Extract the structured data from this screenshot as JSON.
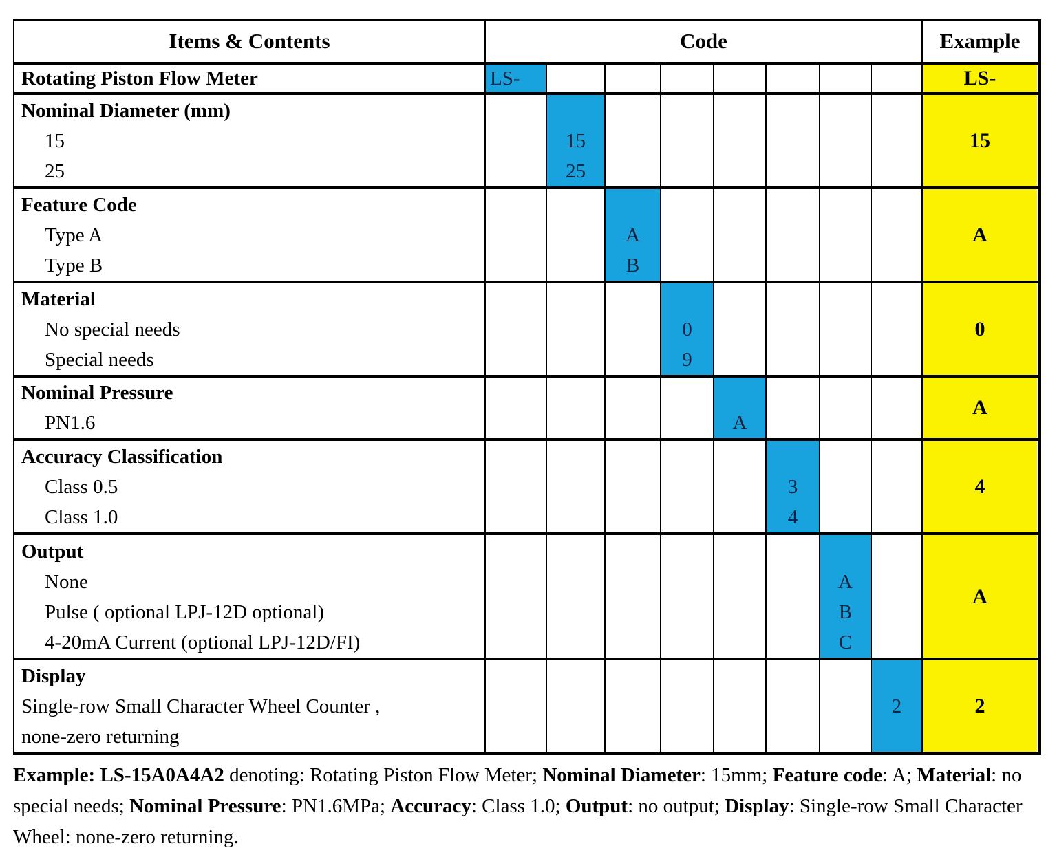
{
  "colors": {
    "code_fill": "#19A3DE",
    "example_fill": "#FAF200"
  },
  "table": {
    "header": {
      "items": "Items & Contents",
      "code": "Code",
      "example": "Example"
    },
    "rows": [
      {
        "item_lines": [
          {
            "text": "Rotating Piston Flow Meter"
          }
        ],
        "code_column": 1,
        "code_lines": [
          "LS-"
        ],
        "example": "LS-"
      },
      {
        "item_lines": [
          {
            "text": "Nominal Diameter (mm)"
          },
          {
            "text": "15"
          },
          {
            "text": "25"
          }
        ],
        "code_column": 2,
        "code_lines": [
          "",
          "15",
          "25"
        ],
        "example": "15"
      },
      {
        "item_lines": [
          {
            "text": "Feature Code"
          },
          {
            "text": "Type A"
          },
          {
            "text": "Type B"
          }
        ],
        "code_column": 3,
        "code_lines": [
          "",
          "A",
          "B"
        ],
        "example": "A"
      },
      {
        "item_lines": [
          {
            "text": "Material"
          },
          {
            "text": "No special needs"
          },
          {
            "text": "Special needs"
          }
        ],
        "code_column": 4,
        "code_lines": [
          "",
          "0",
          "9"
        ],
        "example": "0"
      },
      {
        "item_lines": [
          {
            "text": "Nominal Pressure"
          },
          {
            "text": "PN1.6"
          }
        ],
        "code_column": 5,
        "code_lines": [
          "",
          "A"
        ],
        "example": "A"
      },
      {
        "item_lines": [
          {
            "text": "Accuracy Classification"
          },
          {
            "text": "Class 0.5"
          },
          {
            "text": "Class 1.0"
          }
        ],
        "code_column": 6,
        "code_lines": [
          "",
          "3",
          "4"
        ],
        "example": "4"
      },
      {
        "item_lines": [
          {
            "text": "Output"
          },
          {
            "text": "None"
          },
          {
            "text": "Pulse ( optional LPJ-12D optional)"
          },
          {
            "text": "4-20mA Current (optional LPJ-12D/FI)"
          }
        ],
        "code_column": 7,
        "code_lines": [
          "",
          "A",
          "B",
          "C"
        ],
        "example": "A"
      },
      {
        "item_lines": [
          {
            "text": "Display"
          },
          {
            "text": "Single-row Small Character Wheel Counter ,"
          },
          {
            "text": "none-zero returning"
          }
        ],
        "code_column": 8,
        "code_lines": [
          "",
          "2",
          ""
        ],
        "example": "2"
      }
    ]
  },
  "footer": {
    "segments": [
      {
        "text": "Example: LS-15A0A4A2",
        "bold": true
      },
      {
        "text": " denoting: Rotating Piston Flow Meter; ",
        "bold": false
      },
      {
        "text": "Nominal Diameter",
        "bold": true
      },
      {
        "text": ": 15mm; ",
        "bold": false
      },
      {
        "text": "Feature code",
        "bold": true
      },
      {
        "text": ": A; ",
        "bold": false
      },
      {
        "text": "Material",
        "bold": true
      },
      {
        "text": ": no special needs; ",
        "bold": false
      },
      {
        "text": "Nominal Pressure",
        "bold": true
      },
      {
        "text": ": PN1.6MPa; ",
        "bold": false
      },
      {
        "text": "Accuracy",
        "bold": true
      },
      {
        "text": ": Class 1.0; ",
        "bold": false
      },
      {
        "text": "Output",
        "bold": true
      },
      {
        "text": ": no output; ",
        "bold": false
      },
      {
        "text": "Display",
        "bold": true
      },
      {
        "text": ": Single-row Small Character Wheel: none-zero returning.",
        "bold": false
      }
    ]
  }
}
